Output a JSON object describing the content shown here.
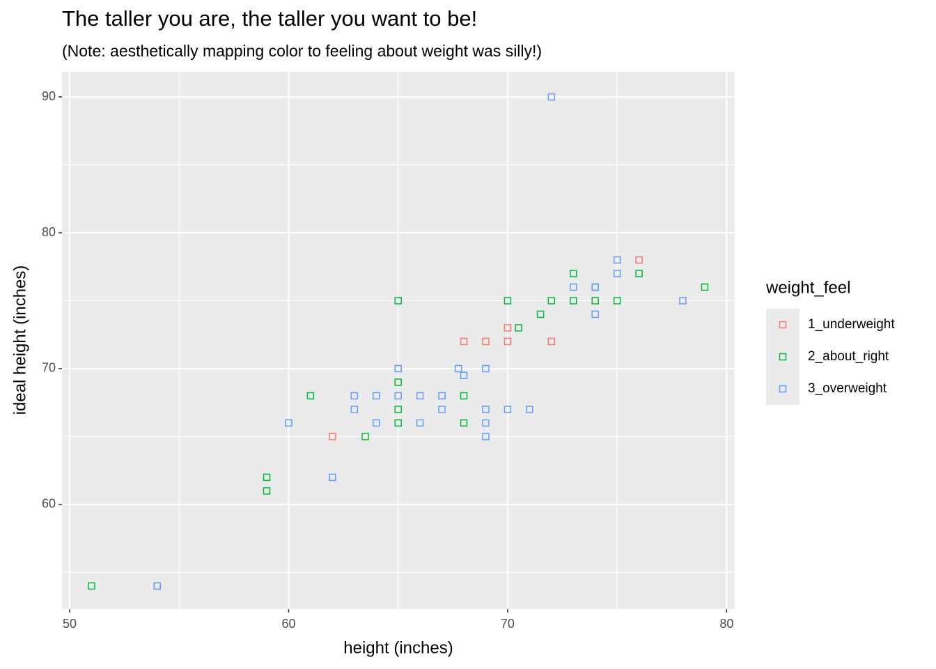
{
  "chart_data": {
    "type": "scatter",
    "title": "The taller you are, the taller you want to be!",
    "subtitle": "(Note: aesthetically mapping color to feeling about weight was silly!)",
    "x_label": "height (inches)",
    "y_label": "ideal height (inches)",
    "legend_title": "weight_feel",
    "legend_position": "right",
    "grid": true,
    "xlim": [
      49.65,
      80.37
    ],
    "ylim": [
      52.3,
      91.85
    ],
    "xticks": [
      50,
      60,
      70,
      80
    ],
    "yticks": [
      60,
      70,
      80,
      90
    ],
    "x_minor_grid": [
      55,
      65,
      75
    ],
    "y_minor_grid": [
      55,
      65,
      75,
      85
    ],
    "marker": "open-square",
    "series": [
      {
        "name": "1_underweight",
        "color": "#f8766d",
        "x": [
          76,
          70,
          70,
          68,
          69,
          72,
          62
        ],
        "values": [
          78,
          73,
          72,
          72,
          72,
          72,
          65
        ]
      },
      {
        "name": "2_about_right",
        "color": "#00ba38",
        "x": [
          51,
          59,
          59,
          61,
          63.5,
          65,
          65,
          65,
          65,
          68,
          68,
          70,
          70.5,
          71.5,
          72,
          73,
          73,
          74,
          74,
          75,
          76,
          79
        ],
        "values": [
          54,
          62,
          61,
          68,
          65,
          75,
          69,
          67,
          66,
          68,
          66,
          75,
          73,
          74,
          75,
          77,
          75,
          76,
          75,
          75,
          77,
          76
        ]
      },
      {
        "name": "3_overweight",
        "color": "#619cff",
        "x": [
          54,
          60,
          62,
          63,
          63,
          64,
          64,
          65,
          65,
          66,
          66,
          67,
          67,
          67.75,
          68,
          69,
          69,
          69,
          69,
          70,
          71,
          72,
          73,
          74,
          74,
          75,
          75,
          78
        ],
        "values": [
          54,
          66,
          62,
          68,
          67,
          68,
          66,
          70,
          68,
          68,
          66,
          68,
          67,
          70,
          69.5,
          70,
          67,
          66,
          65,
          67,
          67,
          90,
          76,
          76,
          74,
          78,
          77,
          75
        ]
      }
    ]
  }
}
